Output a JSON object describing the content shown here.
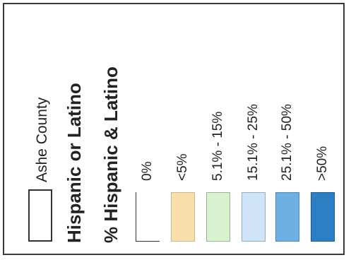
{
  "legend": {
    "county_label": "Ashe County",
    "title_line1": "Hispanic or Latino",
    "title_line2": "% Hispanic & Latino",
    "classes": [
      {
        "label": "0%",
        "color": "#ffffff"
      },
      {
        "label": "<5%",
        "color": "#f7deaa"
      },
      {
        "label": "5.1% - 15%",
        "color": "#d8f2d0"
      },
      {
        "label": "15.1% - 25%",
        "color": "#cfe4f7"
      },
      {
        "label": "25.1% - 50%",
        "color": "#6fb0e2"
      },
      {
        "label": ">50%",
        "color": "#2c7fc2"
      }
    ]
  }
}
